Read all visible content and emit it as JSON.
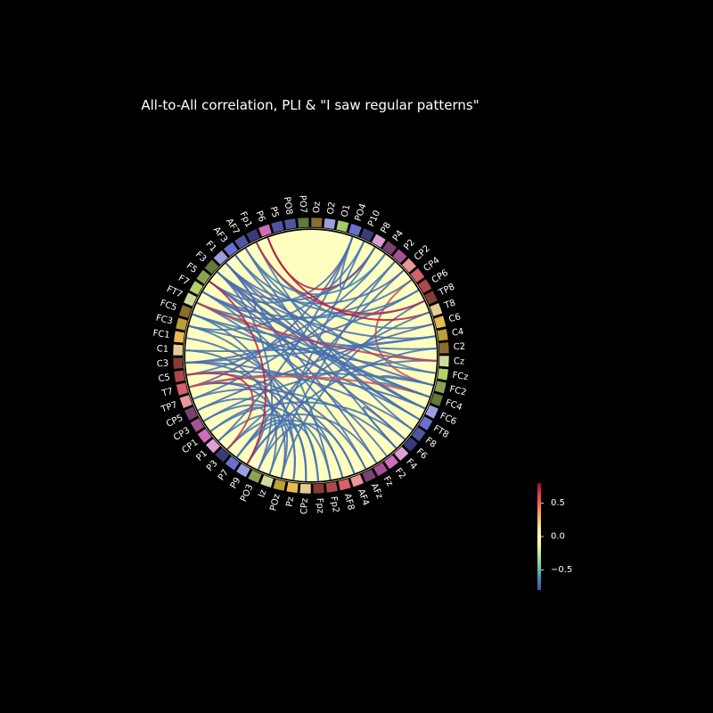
{
  "chart_data": {
    "type": "connectivity-circle",
    "title": "All-to-All correlation, PLI & \"I saw regular patterns\"",
    "background_color": "#000000",
    "facecolor_disk": "#ffffbf",
    "nodes": [
      {
        "label": "O1",
        "color": "#a6c96a"
      },
      {
        "label": "PO4",
        "color": "#6b6ecf"
      },
      {
        "label": "P10",
        "color": "#393b79"
      },
      {
        "label": "P8",
        "color": "#de9ed6"
      },
      {
        "label": "P4",
        "color": "#7b4173"
      },
      {
        "label": "P2",
        "color": "#a55194"
      },
      {
        "label": "CP2",
        "color": "#e7969c"
      },
      {
        "label": "CP4",
        "color": "#d6616b"
      },
      {
        "label": "CP6",
        "color": "#ad494a"
      },
      {
        "label": "TP8",
        "color": "#843c39"
      },
      {
        "label": "T8",
        "color": "#e7cb94"
      },
      {
        "label": "C6",
        "color": "#e7ba52"
      },
      {
        "label": "C4",
        "color": "#bd9e39"
      },
      {
        "label": "C2",
        "color": "#8c6d31"
      },
      {
        "label": "Cz",
        "color": "#cedb9c"
      },
      {
        "label": "FCz",
        "color": "#b5cf6b"
      },
      {
        "label": "FC2",
        "color": "#8ca252"
      },
      {
        "label": "FC4",
        "color": "#637939"
      },
      {
        "label": "FC6",
        "color": "#9c9ede"
      },
      {
        "label": "FT8",
        "color": "#6b6ecf"
      },
      {
        "label": "F8",
        "color": "#5254a3"
      },
      {
        "label": "F6",
        "color": "#393b79"
      },
      {
        "label": "F4",
        "color": "#de9ed6"
      },
      {
        "label": "F2",
        "color": "#ce6dbd"
      },
      {
        "label": "Fz",
        "color": "#a55194"
      },
      {
        "label": "AFz",
        "color": "#7b4173"
      },
      {
        "label": "AF4",
        "color": "#e7969c"
      },
      {
        "label": "AF8",
        "color": "#d6616b"
      },
      {
        "label": "Fp2",
        "color": "#ad494a"
      },
      {
        "label": "Fpz",
        "color": "#843c39"
      },
      {
        "label": "CPz",
        "color": "#e7cb94"
      },
      {
        "label": "Pz",
        "color": "#e7ba52"
      },
      {
        "label": "POz",
        "color": "#bd9e39"
      },
      {
        "label": "Iz",
        "color": "#cedb9c"
      },
      {
        "label": "PO3",
        "color": "#8ca252"
      },
      {
        "label": "P9",
        "color": "#9c9ede"
      },
      {
        "label": "P7",
        "color": "#6b6ecf"
      },
      {
        "label": "P3",
        "color": "#393b79"
      },
      {
        "label": "P1",
        "color": "#de9ed6"
      },
      {
        "label": "CP1",
        "color": "#ce6dbd"
      },
      {
        "label": "CP3",
        "color": "#a55194"
      },
      {
        "label": "CP5",
        "color": "#7b4173"
      },
      {
        "label": "TP7",
        "color": "#e7969c"
      },
      {
        "label": "T7",
        "color": "#d6616b"
      },
      {
        "label": "C5",
        "color": "#ad494a"
      },
      {
        "label": "C3",
        "color": "#843c39"
      },
      {
        "label": "C1",
        "color": "#e7cb94"
      },
      {
        "label": "FC1",
        "color": "#e7ba52"
      },
      {
        "label": "FC3",
        "color": "#bd9e39"
      },
      {
        "label": "FC5",
        "color": "#8c6d31"
      },
      {
        "label": "FT7",
        "color": "#cedb9c"
      },
      {
        "label": "F7",
        "color": "#b5cf6b"
      },
      {
        "label": "F5",
        "color": "#8ca252"
      },
      {
        "label": "F3",
        "color": "#637939"
      },
      {
        "label": "F1",
        "color": "#9c9ede"
      },
      {
        "label": "AF3",
        "color": "#6b6ecf"
      },
      {
        "label": "AF7",
        "color": "#5254a3"
      },
      {
        "label": "Fp1",
        "color": "#393b79"
      },
      {
        "label": "P6",
        "color": "#ce6dbd"
      },
      {
        "label": "P5",
        "color": "#5254a3"
      },
      {
        "label": "PO8",
        "color": "#5254a3"
      },
      {
        "label": "PO7",
        "color": "#637939"
      },
      {
        "label": "Oz",
        "color": "#8c6d31"
      },
      {
        "label": "O2",
        "color": "#9c9ede"
      }
    ],
    "connections": [
      {
        "a": "PO4",
        "b": "T7",
        "value": -0.75
      },
      {
        "a": "PO4",
        "b": "F5",
        "value": -0.7
      },
      {
        "a": "PO4",
        "b": "P1",
        "value": -0.72
      },
      {
        "a": "P10",
        "b": "FC3",
        "value": -0.68
      },
      {
        "a": "P10",
        "b": "PO3",
        "value": -0.7
      },
      {
        "a": "P8",
        "b": "P6",
        "value": 0.72
      },
      {
        "a": "P8",
        "b": "F3",
        "value": -0.74
      },
      {
        "a": "P4",
        "b": "C5",
        "value": -0.7
      },
      {
        "a": "P4",
        "b": "AF7",
        "value": -0.66
      },
      {
        "a": "P2",
        "b": "TP7",
        "value": -0.73
      },
      {
        "a": "P2",
        "b": "Iz",
        "value": -0.7
      },
      {
        "a": "CP2",
        "b": "F1",
        "value": -0.71
      },
      {
        "a": "CP2",
        "b": "P7",
        "value": -0.75
      },
      {
        "a": "CP4",
        "b": "FC2",
        "value": 0.62
      },
      {
        "a": "CP4",
        "b": "FT7",
        "value": -0.7
      },
      {
        "a": "CP6",
        "b": "C3",
        "value": -0.74
      },
      {
        "a": "CP6",
        "b": "F7",
        "value": -0.69
      },
      {
        "a": "TP8",
        "b": "AF3",
        "value": -0.7
      },
      {
        "a": "TP8",
        "b": "POz",
        "value": -0.72
      },
      {
        "a": "T8",
        "b": "P6",
        "value": 0.74
      },
      {
        "a": "T8",
        "b": "P3",
        "value": -0.7
      },
      {
        "a": "C6",
        "b": "Fp1",
        "value": -0.68
      },
      {
        "a": "C6",
        "b": "CP5",
        "value": -0.74
      },
      {
        "a": "C4",
        "b": "F3",
        "value": -0.72
      },
      {
        "a": "C4",
        "b": "C1",
        "value": -0.7
      },
      {
        "a": "C2",
        "b": "FC5",
        "value": -0.7
      },
      {
        "a": "C2",
        "b": "P9",
        "value": -0.72
      },
      {
        "a": "Cz",
        "b": "F1",
        "value": -0.73
      },
      {
        "a": "Cz",
        "b": "CP3",
        "value": -0.7
      },
      {
        "a": "FCz",
        "b": "AF7",
        "value": -0.7
      },
      {
        "a": "FCz",
        "b": "FC3",
        "value": -0.71
      },
      {
        "a": "FC2",
        "b": "F5",
        "value": -0.74
      },
      {
        "a": "FC2",
        "b": "T7",
        "value": -0.7
      },
      {
        "a": "FC4",
        "b": "F7",
        "value": -0.72
      },
      {
        "a": "FC4",
        "b": "FT7",
        "value": -0.69
      },
      {
        "a": "FC6",
        "b": "F3",
        "value": -0.75
      },
      {
        "a": "FC6",
        "b": "C5",
        "value": -0.73
      },
      {
        "a": "FC6",
        "b": "AF3",
        "value": -0.71
      },
      {
        "a": "FT8",
        "b": "F1",
        "value": -0.72
      },
      {
        "a": "FT8",
        "b": "FC5",
        "value": -0.7
      },
      {
        "a": "F8",
        "b": "Fp1",
        "value": -0.69
      },
      {
        "a": "F8",
        "b": "C3",
        "value": -0.72
      },
      {
        "a": "F6",
        "b": "F5",
        "value": -0.74
      },
      {
        "a": "F6",
        "b": "CP1",
        "value": -0.7
      },
      {
        "a": "F4",
        "b": "AF7",
        "value": -0.71
      },
      {
        "a": "F4",
        "b": "TP7",
        "value": -0.7
      },
      {
        "a": "F2",
        "b": "FT7",
        "value": -0.72
      },
      {
        "a": "Fz",
        "b": "F3",
        "value": -0.74
      },
      {
        "a": "Fz",
        "b": "P3",
        "value": -0.7
      },
      {
        "a": "AFz",
        "b": "C5",
        "value": -0.72
      },
      {
        "a": "AFz",
        "b": "F7",
        "value": -0.7
      },
      {
        "a": "AF4",
        "b": "T7",
        "value": -0.74
      },
      {
        "a": "AF4",
        "b": "PO3",
        "value": -0.7
      },
      {
        "a": "AF8",
        "b": "FC1",
        "value": -0.73
      },
      {
        "a": "AF8",
        "b": "P7",
        "value": -0.7
      },
      {
        "a": "Fp2",
        "b": "CP3",
        "value": -0.72
      },
      {
        "a": "Fp2",
        "b": "F1",
        "value": -0.7
      },
      {
        "a": "Fpz",
        "b": "FC3",
        "value": -0.71
      },
      {
        "a": "Fpz",
        "b": "P9",
        "value": -0.7
      },
      {
        "a": "CPz",
        "b": "C3",
        "value": -0.73
      },
      {
        "a": "CPz",
        "b": "P1",
        "value": -0.7
      },
      {
        "a": "Pz",
        "b": "FC5",
        "value": -0.72
      },
      {
        "a": "Pz",
        "b": "CP5",
        "value": -0.7
      },
      {
        "a": "POz",
        "b": "T7",
        "value": -0.74
      },
      {
        "a": "POz",
        "b": "P7",
        "value": -0.7
      },
      {
        "a": "Iz",
        "b": "C1",
        "value": -0.71
      },
      {
        "a": "PO3",
        "b": "F3",
        "value": -0.72
      },
      {
        "a": "P9",
        "b": "CP1",
        "value": -0.7
      },
      {
        "a": "TP8",
        "b": "Fp1",
        "value": 0.7
      },
      {
        "a": "Cz",
        "b": "FT7",
        "value": 0.66
      },
      {
        "a": "FC4",
        "b": "T7",
        "value": 0.6
      },
      {
        "a": "P9",
        "b": "F5",
        "value": 0.72
      },
      {
        "a": "P3",
        "b": "C5",
        "value": 0.68
      },
      {
        "a": "F6",
        "b": "F4",
        "value": -0.72
      },
      {
        "a": "FC2",
        "b": "FC4",
        "value": -0.7
      },
      {
        "a": "P8",
        "b": "PO4",
        "value": -0.7
      },
      {
        "a": "F1",
        "b": "F7",
        "value": -0.72
      },
      {
        "a": "FC6",
        "b": "FC4",
        "value": -0.7
      },
      {
        "a": "FT8",
        "b": "F3",
        "value": -0.71
      },
      {
        "a": "C4",
        "b": "C3",
        "value": -0.7
      }
    ],
    "colorbar": {
      "colormap": "Spectral_r",
      "vmin": -0.8,
      "vmax": 0.8,
      "ticks": [
        0.5,
        0.0,
        -0.5
      ],
      "tick_labels": [
        "0.5",
        "0.0",
        "−0.5"
      ]
    }
  }
}
